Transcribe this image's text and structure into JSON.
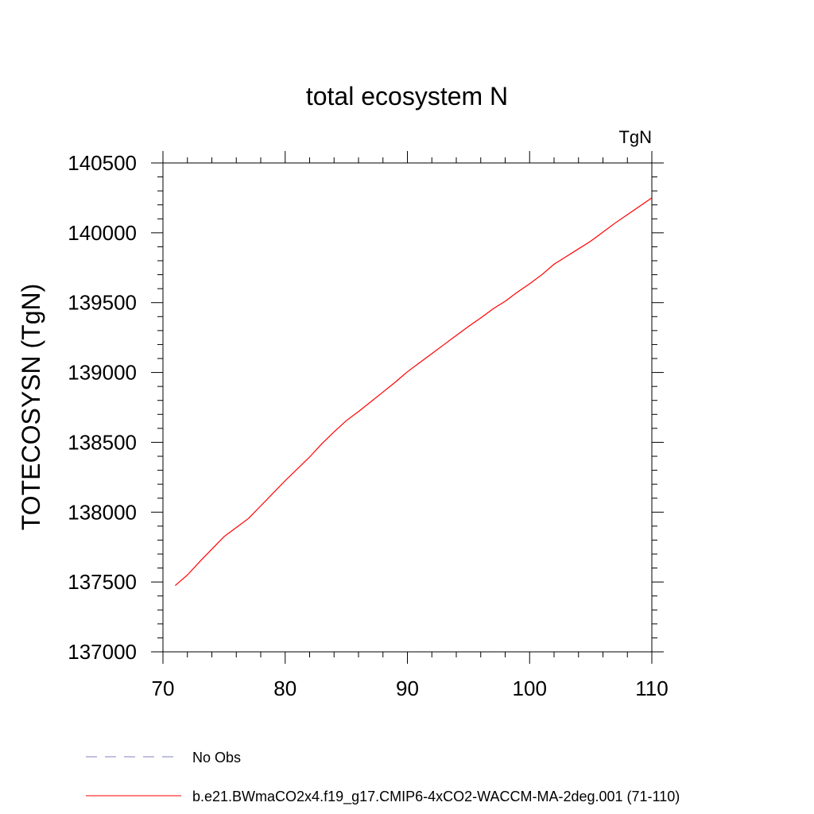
{
  "chart_data": {
    "type": "line",
    "title": "total ecosystem N",
    "units_label": "TgN",
    "ylabel": "TOTECOSYSN  (TgN)",
    "xlabel": "",
    "xlim": [
      70,
      110
    ],
    "ylim": [
      137000,
      140500
    ],
    "x_ticks": [
      70,
      80,
      90,
      100,
      110
    ],
    "y_ticks": [
      137000,
      137500,
      138000,
      138500,
      139000,
      139500,
      140000,
      140500
    ],
    "grid": false,
    "legend_position": "bottom-left",
    "series": [
      {
        "name": "b.e21.BWmaCO2x4.f19_g17.CMIP6-4xCO2-WACCM-MA-2deg.001 (71-110)",
        "color": "#ff0000",
        "style": "solid",
        "x": [
          71,
          72,
          73,
          74,
          75,
          76,
          77,
          78,
          79,
          80,
          81,
          82,
          83,
          84,
          85,
          86,
          87,
          88,
          89,
          90,
          91,
          92,
          93,
          94,
          95,
          96,
          97,
          98,
          99,
          100,
          101,
          102,
          103,
          104,
          105,
          106,
          107,
          108,
          109,
          110
        ],
        "y": [
          137475,
          137550,
          137645,
          137735,
          137825,
          137890,
          137955,
          138045,
          138135,
          138225,
          138310,
          138395,
          138490,
          138575,
          138655,
          138720,
          138790,
          138860,
          138930,
          139005,
          139070,
          139135,
          139200,
          139265,
          139330,
          139390,
          139455,
          139510,
          139575,
          139635,
          139700,
          139775,
          139830,
          139885,
          139940,
          140005,
          140070,
          140130,
          140190,
          140250
        ]
      },
      {
        "name": "No Obs",
        "color": "#8080c0",
        "style": "dashed",
        "x": [],
        "y": []
      }
    ]
  }
}
